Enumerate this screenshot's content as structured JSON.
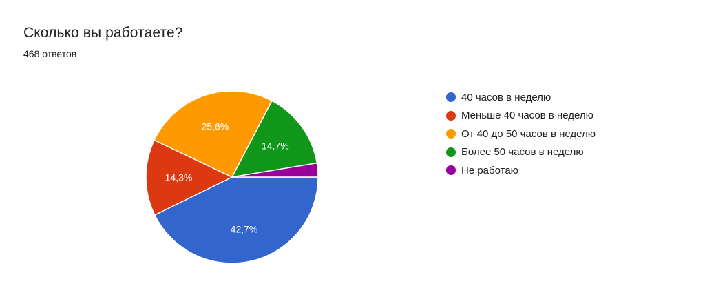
{
  "title": "Сколько вы работаете?",
  "subtitle": "468 ответов",
  "chart_data": {
    "type": "pie",
    "title": "Сколько вы работаете?",
    "categories": [
      "40 часов в неделю",
      "Меньше 40 часов в неделю",
      "От 40 до 50 часов в неделю",
      "Более 50 часов в неделю",
      "Не работаю"
    ],
    "values": [
      42.7,
      14.3,
      25.6,
      14.7,
      2.6
    ],
    "data_labels": [
      "42,7%",
      "14,3%",
      "25,6%",
      "14,7%",
      ""
    ],
    "colors": [
      "#3366cc",
      "#dc3912",
      "#ff9900",
      "#109618",
      "#990099"
    ],
    "legend": "right",
    "start": "3 o'clock",
    "direction": "clockwise"
  }
}
